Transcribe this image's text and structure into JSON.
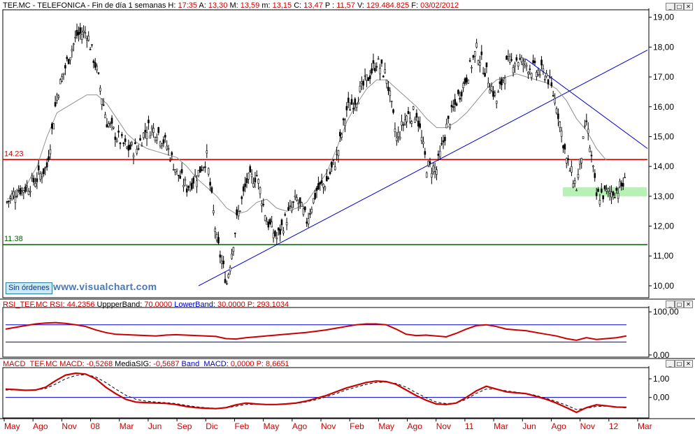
{
  "header": {
    "symbol": "TEF.MC - TELEFONICA - Fin de día 1 semanas",
    "fields": [
      {
        "k": "H:",
        "v": "17:35"
      },
      {
        "k": "A:",
        "v": "13,30"
      },
      {
        "k": "M:",
        "v": "13,59"
      },
      {
        "k": "m:",
        "v": "13,15"
      },
      {
        "k": "C:",
        "v": "13,47"
      },
      {
        "k": "P :",
        "v": "11,57"
      },
      {
        "k": "V:",
        "v": "129.484.825"
      },
      {
        "k": "F:",
        "v": "03/02/2012"
      }
    ]
  },
  "badges": {
    "no_orders": "Sin órdenes",
    "brand": "www.visualchart.com"
  },
  "window_buttons": [
    "_",
    "□",
    "✕"
  ],
  "colors": {
    "up_red": "#cc0000",
    "blue": "#0000cc",
    "green": "#006400",
    "zone": "#b8f0b8",
    "ma": "#909090"
  },
  "chart_data": [
    {
      "type": "line",
      "name": "price",
      "title": "TEF.MC - TELEFONICA - Fin de día 1 semanas",
      "ylim": [
        9.6,
        19.25
      ],
      "yticks": [
        "19,00",
        "18,00",
        "17,00",
        "16,00",
        "15,00",
        "14,00",
        "13,00",
        "12,00",
        "11,00",
        "10,00"
      ],
      "ytick_values": [
        19,
        18,
        17,
        16,
        15,
        14,
        13,
        12,
        11,
        10
      ],
      "x_labels": [
        "May",
        "Ago",
        "Nov",
        "08",
        "Mar",
        "Jun",
        "Sep",
        "Dic",
        "Feb",
        "May",
        "Ago",
        "Nov",
        "Feb",
        "May",
        "Ago",
        "Nov",
        "11",
        "Mar",
        "Jun",
        "Ago",
        "Nov",
        "12",
        "Mar"
      ],
      "series": [
        {
          "values": [
            12.8,
            13.2,
            13.3,
            13.6,
            14.0,
            16.4,
            17.5,
            18.4,
            18.5,
            17.2,
            15.5,
            15.0,
            14.6,
            14.6,
            15.3,
            15.2,
            14.7,
            13.8,
            13.3,
            13.7,
            14.3,
            11.5,
            10.1,
            12.2,
            13.5,
            13.7,
            12.2,
            11.6,
            12.3,
            12.9,
            12.2,
            13.2,
            13.5,
            14.3,
            15.9,
            16.3,
            16.9,
            17.5,
            17.0,
            14.9,
            15.7,
            15.8,
            14.0,
            13.9,
            15.3,
            16.2,
            17.0,
            17.9,
            17.1,
            16.2,
            17.4,
            17.6,
            17.4,
            17.2,
            17.1,
            16.1,
            14.2,
            13.3,
            15.5,
            13.0,
            13.1,
            13.2,
            13.5
          ]
        },
        {
          "values": [
            12.9,
            13.0,
            13.4,
            14.0,
            15.0,
            15.8,
            16.0,
            16.2,
            16.4,
            16.4,
            16.1,
            15.6,
            15.1,
            14.8,
            14.6,
            14.5,
            14.4,
            14.3,
            14.0,
            13.6,
            13.3,
            13.0,
            12.6,
            12.4,
            12.5,
            12.8,
            12.9,
            12.6,
            12.5,
            12.6,
            12.8,
            13.3,
            13.8,
            14.6,
            15.5,
            16.1,
            16.6,
            16.9,
            16.9,
            16.6,
            16.3,
            16.0,
            15.6,
            15.3,
            15.3,
            15.5,
            15.8,
            16.2,
            16.6,
            16.9,
            17.0,
            17.1,
            17.0,
            16.9,
            16.8,
            16.6,
            16.2,
            15.6,
            15.2,
            14.6,
            14.2,
            null,
            null
          ]
        }
      ],
      "horizontal_lines": [
        {
          "label": "14.23",
          "value": 14.23,
          "color": "red"
        },
        {
          "label": "11.38",
          "value": 11.38,
          "color": "green"
        }
      ],
      "support_zone": [
        13.0,
        13.3
      ]
    },
    {
      "type": "line",
      "name": "rsi",
      "title": "RSI_TEF.MC",
      "legend": [
        {
          "k": "RSI_TEF.MC RSI:",
          "v": "44,2356"
        },
        {
          "k": "UppperBand:",
          "v": "70,0000"
        },
        {
          "k": "LowerBand:",
          "v": "30,0000"
        },
        {
          "k": "P:",
          "v": "293,1034"
        }
      ],
      "ylim": [
        -5,
        110
      ],
      "yticks": [
        "100,00",
        "0,00"
      ],
      "ytick_values": [
        100,
        0
      ],
      "bands": [
        70,
        30
      ],
      "values": [
        60,
        64,
        68,
        72,
        74,
        75,
        73,
        70,
        66,
        58,
        52,
        48,
        47,
        46,
        45,
        44,
        46,
        47,
        46,
        45,
        44,
        43,
        38,
        37,
        40,
        42,
        44,
        46,
        48,
        50,
        52,
        55,
        58,
        62,
        66,
        70,
        72,
        72,
        70,
        60,
        48,
        45,
        46,
        44,
        42,
        50,
        60,
        68,
        70,
        66,
        60,
        58,
        56,
        52,
        48,
        44,
        38,
        34,
        40,
        36,
        38,
        40,
        44
      ]
    },
    {
      "type": "line",
      "name": "macd",
      "title": "MACD_TEF.MC",
      "legend": [
        {
          "k": "MACD_TEF.MC MACD:",
          "v": "-0,5268"
        },
        {
          "k": "MediaSIG:",
          "v": "-0,5687"
        },
        {
          "k": "Band_MACD:",
          "v": "0,0000"
        },
        {
          "k": "P:",
          "v": "8,6651"
        }
      ],
      "ylim": [
        -1.1,
        1.6
      ],
      "yticks": [
        "1,00",
        "0,00"
      ],
      "ytick_values": [
        1,
        0
      ],
      "series": [
        {
          "name": "MACD",
          "values": [
            0.45,
            0.42,
            0.38,
            0.4,
            0.55,
            0.9,
            1.2,
            1.3,
            1.25,
            1.0,
            0.55,
            0.2,
            -0.1,
            -0.25,
            -0.28,
            -0.3,
            -0.32,
            -0.38,
            -0.48,
            -0.55,
            -0.58,
            -0.6,
            -0.55,
            -0.4,
            -0.3,
            -0.35,
            -0.38,
            -0.38,
            -0.35,
            -0.3,
            -0.2,
            -0.05,
            0.1,
            0.3,
            0.5,
            0.65,
            0.8,
            0.88,
            0.85,
            0.7,
            0.4,
            0.1,
            -0.15,
            -0.35,
            -0.38,
            -0.3,
            0.0,
            0.35,
            0.6,
            0.45,
            0.3,
            0.25,
            0.2,
            0.05,
            -0.1,
            -0.3,
            -0.55,
            -0.8,
            -0.55,
            -0.4,
            -0.45,
            -0.52,
            -0.53
          ]
        },
        {
          "name": "MediaSIG",
          "values": [
            0.4,
            0.4,
            0.4,
            0.4,
            0.48,
            0.72,
            1.0,
            1.18,
            1.22,
            1.1,
            0.8,
            0.45,
            0.12,
            -0.1,
            -0.2,
            -0.25,
            -0.28,
            -0.33,
            -0.42,
            -0.5,
            -0.55,
            -0.58,
            -0.56,
            -0.47,
            -0.38,
            -0.36,
            -0.37,
            -0.37,
            -0.36,
            -0.32,
            -0.24,
            -0.12,
            0.03,
            0.2,
            0.4,
            0.55,
            0.7,
            0.8,
            0.83,
            0.75,
            0.55,
            0.25,
            -0.02,
            -0.25,
            -0.33,
            -0.3,
            -0.1,
            0.22,
            0.45,
            0.45,
            0.35,
            0.28,
            0.22,
            0.1,
            -0.05,
            -0.22,
            -0.42,
            -0.65,
            -0.58,
            -0.48,
            -0.47,
            -0.52,
            -0.57
          ]
        }
      ],
      "band": 0
    }
  ]
}
